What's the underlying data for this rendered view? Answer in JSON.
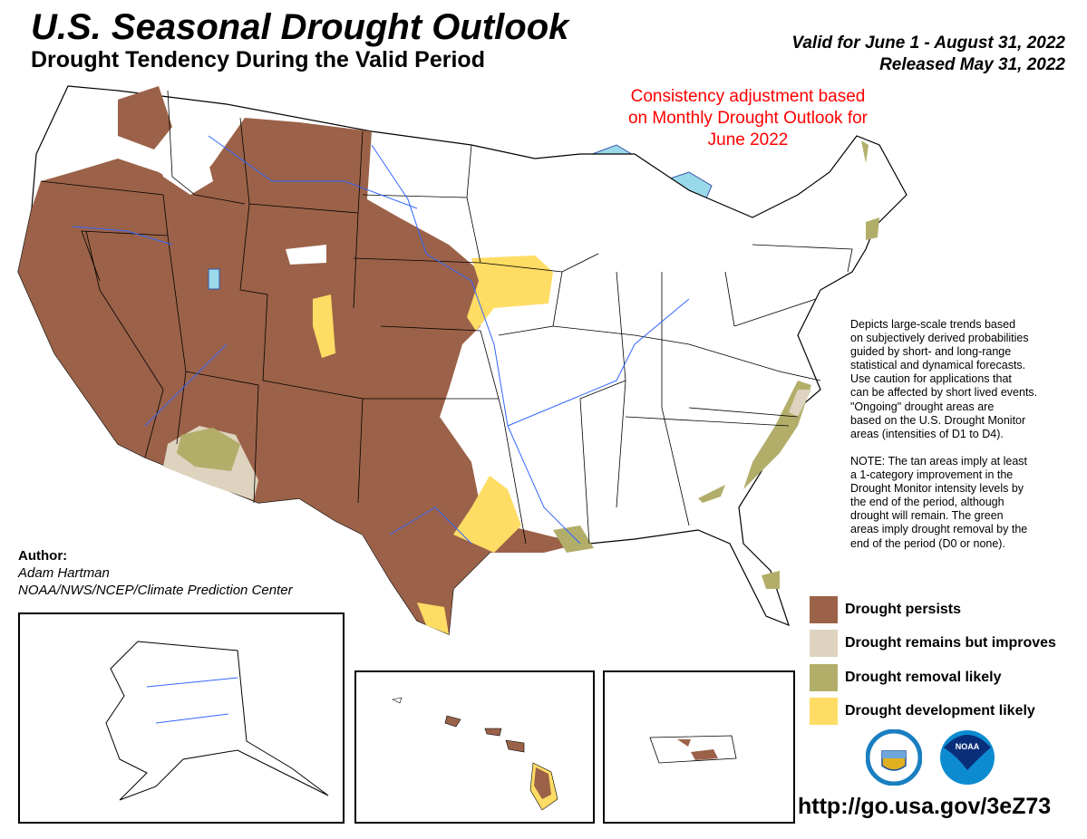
{
  "header": {
    "title": "U.S. Seasonal Drought Outlook",
    "subtitle": "Drought Tendency During the Valid Period",
    "valid": "Valid for June 1 - August 31, 2022",
    "released": "Released May 31, 2022"
  },
  "annotation": "Consistency adjustment based on Monthly Drought Outlook for June 2022",
  "description": "Depicts large-scale trends based\non subjectively derived probabilities\nguided by short- and long-range\nstatistical and dynamical forecasts.\nUse caution for applications that\ncan be affected by short lived events.\n\"Ongoing\" drought areas are\nbased on the U.S. Drought Monitor\nareas (intensities of D1 to D4).\n\nNOTE: The tan areas imply at least\na 1-category improvement in the\nDrought Monitor intensity levels by\nthe end of the period, although\ndrought will remain. The green\nareas imply drought removal by the\nend of the period (D0 or none).",
  "author": {
    "heading": "Author:",
    "name": "Adam Hartman",
    "org": "NOAA/NWS/NCEP/Climate Prediction Center"
  },
  "legend": [
    {
      "label": "Drought persists",
      "color": "#9b6249"
    },
    {
      "label": "Drought remains but improves",
      "color": "#ddd3bf"
    },
    {
      "label": "Drought removal likely",
      "color": "#b2ae6a"
    },
    {
      "label": "Drought development likely",
      "color": "#ffdc64"
    }
  ],
  "logos": [
    "Department of Commerce seal",
    "NOAA"
  ],
  "url": "http://go.usa.gov/3eZ73"
}
